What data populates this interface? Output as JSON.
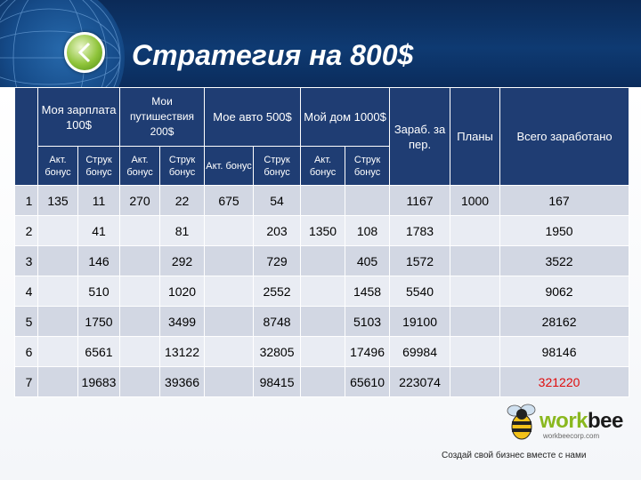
{
  "title": "Стратегия на 800$",
  "table": {
    "group_headers": [
      {
        "key": "salary",
        "label": "Моя зарплата 100$"
      },
      {
        "key": "travel",
        "label": "Мои путишествия 200$"
      },
      {
        "key": "car",
        "label": "Мое авто 500$"
      },
      {
        "key": "house",
        "label": "Мой дом 1000$"
      }
    ],
    "col_earned": "Зараб. за пер.",
    "col_plans": "Планы",
    "col_total": "Всего заработано",
    "sub_headers": [
      "Акт. бонус",
      "Струк бонус",
      "Акт. бонус",
      "Струк бонус",
      "Акт. бонус",
      "Струк бонус",
      "Акт. бонус",
      "Струк бонус"
    ],
    "rows": [
      {
        "n": "1",
        "c": [
          "135",
          "11",
          "270",
          "22",
          "675",
          "54",
          "",
          ""
        ],
        "earned": "1167",
        "plans": "1000",
        "total": "167"
      },
      {
        "n": "2",
        "c": [
          "",
          "41",
          "",
          "81",
          "",
          "203",
          "1350",
          "108"
        ],
        "earned": "1783",
        "plans": "",
        "total": "1950"
      },
      {
        "n": "3",
        "c": [
          "",
          "146",
          "",
          "292",
          "",
          "729",
          "",
          "405"
        ],
        "earned": "1572",
        "plans": "",
        "total": "3522"
      },
      {
        "n": "4",
        "c": [
          "",
          "510",
          "",
          "1020",
          "",
          "2552",
          "",
          "1458"
        ],
        "earned": "5540",
        "plans": "",
        "total": "9062"
      },
      {
        "n": "5",
        "c": [
          "",
          "1750",
          "",
          "3499",
          "",
          "8748",
          "",
          "5103"
        ],
        "earned": "19100",
        "plans": "",
        "total": "28162"
      },
      {
        "n": "6",
        "c": [
          "",
          "6561",
          "",
          "13122",
          "",
          "32805",
          "",
          "17496"
        ],
        "earned": "69984",
        "plans": "",
        "total": "98146"
      },
      {
        "n": "7",
        "c": [
          "",
          "19683",
          "",
          "39366",
          "",
          "98415",
          "",
          "65610"
        ],
        "earned": "223074",
        "plans": "",
        "total": "321220"
      }
    ]
  },
  "logo": {
    "brand_a": "work",
    "brand_b": "bee",
    "sub": "workbeecorp.com",
    "icon": "bee-icon",
    "accent": "#8ab81f"
  },
  "footer": "Создай свой бизнес вместе с нами",
  "colors": {
    "header": "#1f3d73",
    "row_odd": "#d2d7e3",
    "row_even": "#e9ecf3",
    "total_green": "#1a8a2a",
    "total_red": "#e00c0c"
  },
  "nav": {
    "back_icon": "chevron-left-icon"
  }
}
